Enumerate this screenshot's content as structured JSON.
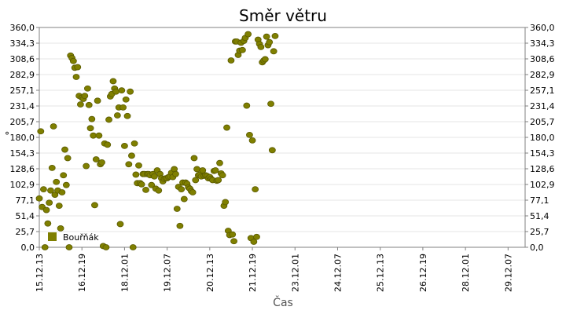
{
  "chart_data": {
    "type": "scatter",
    "title": "Směr větru",
    "xlabel": "Čas",
    "ylabel": "°",
    "ylim": [
      0,
      360
    ],
    "yticks": [
      "0,0",
      "25,7",
      "51,4",
      "77,1",
      "102,9",
      "128,6",
      "154,3",
      "180,0",
      "205,7",
      "231,4",
      "257,1",
      "282,9",
      "308,6",
      "334,3",
      "360,0"
    ],
    "xlim": [
      "15.12.13",
      "29.12.19"
    ],
    "xticks": [
      "15.12.13",
      "16.12.19",
      "18.12.01",
      "19.12.07",
      "20.12.13",
      "21.12.19",
      "23.12.01",
      "24.12.07",
      "25.12.13",
      "26.12.19",
      "28.12.01",
      "29.12.07"
    ],
    "grid": true,
    "legend": "bottom-left",
    "series": [
      {
        "name": "Bouřňák",
        "color": "#7f7f00",
        "points": [
          [
            "15.12.13",
            80
          ],
          [
            "15.12.14",
            190
          ],
          [
            "15.12.15",
            66
          ],
          [
            "15.12.16",
            95
          ],
          [
            "15.12.17",
            0
          ],
          [
            "15.12.18",
            61
          ],
          [
            "15.12.19",
            39
          ],
          [
            "15.12.20",
            73
          ],
          [
            "15.12.21",
            93
          ],
          [
            "15.12.22",
            130
          ],
          [
            "15.12.23",
            198
          ],
          [
            "15.12.24",
            86
          ],
          [
            "16.12.01",
            107
          ],
          [
            "16.12.02",
            93
          ],
          [
            "16.12.03",
            68
          ],
          [
            "16.12.04",
            31
          ],
          [
            "16.12.05",
            90
          ],
          [
            "16.12.06",
            118
          ],
          [
            "16.12.07",
            160
          ],
          [
            "16.12.08",
            102
          ],
          [
            "16.12.09",
            146
          ],
          [
            "16.12.10",
            0
          ],
          [
            "16.12.11",
            314
          ],
          [
            "16.12.12",
            310
          ],
          [
            "16.12.13",
            305
          ],
          [
            "16.12.14",
            294
          ],
          [
            "16.12.15",
            279
          ],
          [
            "16.12.16",
            295
          ],
          [
            "16.12.17",
            248
          ],
          [
            "16.12.18",
            234
          ],
          [
            "16.12.19",
            245
          ],
          [
            "16.12.20",
            243
          ],
          [
            "16.12.21",
            248
          ],
          [
            "16.12.22",
            133
          ],
          [
            "16.12.23",
            260
          ],
          [
            "17.12.00",
            233
          ],
          [
            "17.12.01",
            195
          ],
          [
            "17.12.02",
            210
          ],
          [
            "17.12.03",
            183
          ],
          [
            "17.12.04",
            69
          ],
          [
            "17.12.05",
            144
          ],
          [
            "17.12.06",
            240
          ],
          [
            "17.12.07",
            183
          ],
          [
            "17.12.08",
            136
          ],
          [
            "17.12.09",
            139
          ],
          [
            "17.12.10",
            2
          ],
          [
            "17.12.11",
            170
          ],
          [
            "17.12.12",
            0
          ],
          [
            "17.12.13",
            168
          ],
          [
            "17.12.14",
            209
          ],
          [
            "17.12.15",
            247
          ],
          [
            "17.12.16",
            251
          ],
          [
            "17.12.17",
            272
          ],
          [
            "17.12.18",
            260
          ],
          [
            "17.12.19",
            255
          ],
          [
            "17.12.20",
            216
          ],
          [
            "17.12.21",
            229
          ],
          [
            "17.12.22",
            38
          ],
          [
            "17.12.23",
            257
          ],
          [
            "18.12.00",
            229
          ],
          [
            "18.12.01",
            166
          ],
          [
            "18.12.02",
            242
          ],
          [
            "18.12.03",
            215
          ],
          [
            "18.12.04",
            136
          ],
          [
            "18.12.05",
            255
          ],
          [
            "18.12.06",
            150
          ],
          [
            "18.12.07",
            0
          ],
          [
            "18.12.08",
            170
          ],
          [
            "18.12.09",
            119
          ],
          [
            "18.12.10",
            105
          ],
          [
            "18.12.11",
            134
          ],
          [
            "18.12.12",
            105
          ],
          [
            "18.12.13",
            103
          ],
          [
            "18.12.14",
            120
          ],
          [
            "18.12.15",
            120
          ],
          [
            "18.12.16",
            94
          ],
          [
            "18.12.17",
            120
          ],
          [
            "18.12.18",
            120
          ],
          [
            "18.12.19",
            118
          ],
          [
            "18.12.20",
            102
          ],
          [
            "18.12.21",
            120
          ],
          [
            "18.12.22",
            116
          ],
          [
            "18.12.23",
            96
          ],
          [
            "19.12.00",
            126
          ],
          [
            "19.12.01",
            93
          ],
          [
            "19.12.02",
            120
          ],
          [
            "19.12.03",
            113
          ],
          [
            "19.12.04",
            108
          ],
          [
            "19.12.05",
            112
          ],
          [
            "19.12.06",
            113
          ],
          [
            "19.12.07",
            113
          ],
          [
            "19.12.08",
            115
          ],
          [
            "19.12.09",
            116
          ],
          [
            "19.12.10",
            122
          ],
          [
            "19.12.11",
            115
          ],
          [
            "19.12.12",
            128
          ],
          [
            "19.12.13",
            120
          ],
          [
            "19.12.14",
            63
          ],
          [
            "19.12.15",
            99
          ],
          [
            "19.12.16",
            35
          ],
          [
            "19.12.17",
            95
          ],
          [
            "19.12.18",
            106
          ],
          [
            "19.12.19",
            79
          ],
          [
            "19.12.20",
            106
          ],
          [
            "19.12.21",
            104
          ],
          [
            "19.12.22",
            98
          ],
          [
            "19.12.23",
            96
          ],
          [
            "20.12.00",
            92
          ],
          [
            "20.12.01",
            90
          ],
          [
            "20.12.02",
            146
          ],
          [
            "20.12.03",
            110
          ],
          [
            "20.12.04",
            128
          ],
          [
            "20.12.05",
            118
          ],
          [
            "20.12.06",
            119
          ],
          [
            "20.12.07",
            116
          ],
          [
            "20.12.08",
            126
          ],
          [
            "20.12.09",
            117
          ],
          [
            "20.12.10",
            118
          ],
          [
            "20.12.11",
            117
          ],
          [
            "20.12.12",
            113
          ],
          [
            "20.12.13",
            115
          ],
          [
            "20.12.14",
            112
          ],
          [
            "20.12.15",
            110
          ],
          [
            "20.12.16",
            125
          ],
          [
            "20.12.17",
            126
          ],
          [
            "20.12.18",
            109
          ],
          [
            "20.12.19",
            110
          ],
          [
            "20.12.20",
            138
          ],
          [
            "20.12.21",
            121
          ],
          [
            "20.12.22",
            118
          ],
          [
            "20.12.23",
            68
          ],
          [
            "21.12.00",
            74
          ],
          [
            "21.12.01",
            196
          ],
          [
            "21.12.02",
            27
          ],
          [
            "21.12.03",
            20
          ],
          [
            "21.12.04",
            306
          ],
          [
            "21.12.05",
            21
          ],
          [
            "21.12.06",
            10
          ],
          [
            "21.12.07",
            337
          ],
          [
            "21.12.08",
            337
          ],
          [
            "21.12.09",
            315
          ],
          [
            "21.12.10",
            322
          ],
          [
            "21.12.11",
            335
          ],
          [
            "21.12.12",
            323
          ],
          [
            "21.12.13",
            338
          ],
          [
            "21.12.14",
            343
          ],
          [
            "21.12.15",
            232
          ],
          [
            "21.12.16",
            349
          ],
          [
            "21.12.17",
            184
          ],
          [
            "21.12.18",
            15
          ],
          [
            "21.12.19",
            175
          ],
          [
            "21.12.20",
            9
          ],
          [
            "21.12.21",
            95
          ],
          [
            "21.12.22",
            17
          ],
          [
            "21.12.23",
            340
          ],
          [
            "22.12.00",
            333
          ],
          [
            "22.12.01",
            328
          ],
          [
            "22.12.02",
            303
          ],
          [
            "22.12.03",
            306
          ],
          [
            "22.12.04",
            308
          ],
          [
            "22.12.05",
            345
          ],
          [
            "22.12.06",
            331
          ],
          [
            "22.12.07",
            336
          ],
          [
            "22.12.08",
            235
          ],
          [
            "22.12.09",
            159
          ],
          [
            "22.12.10",
            321
          ],
          [
            "22.12.11",
            346
          ]
        ]
      }
    ]
  }
}
